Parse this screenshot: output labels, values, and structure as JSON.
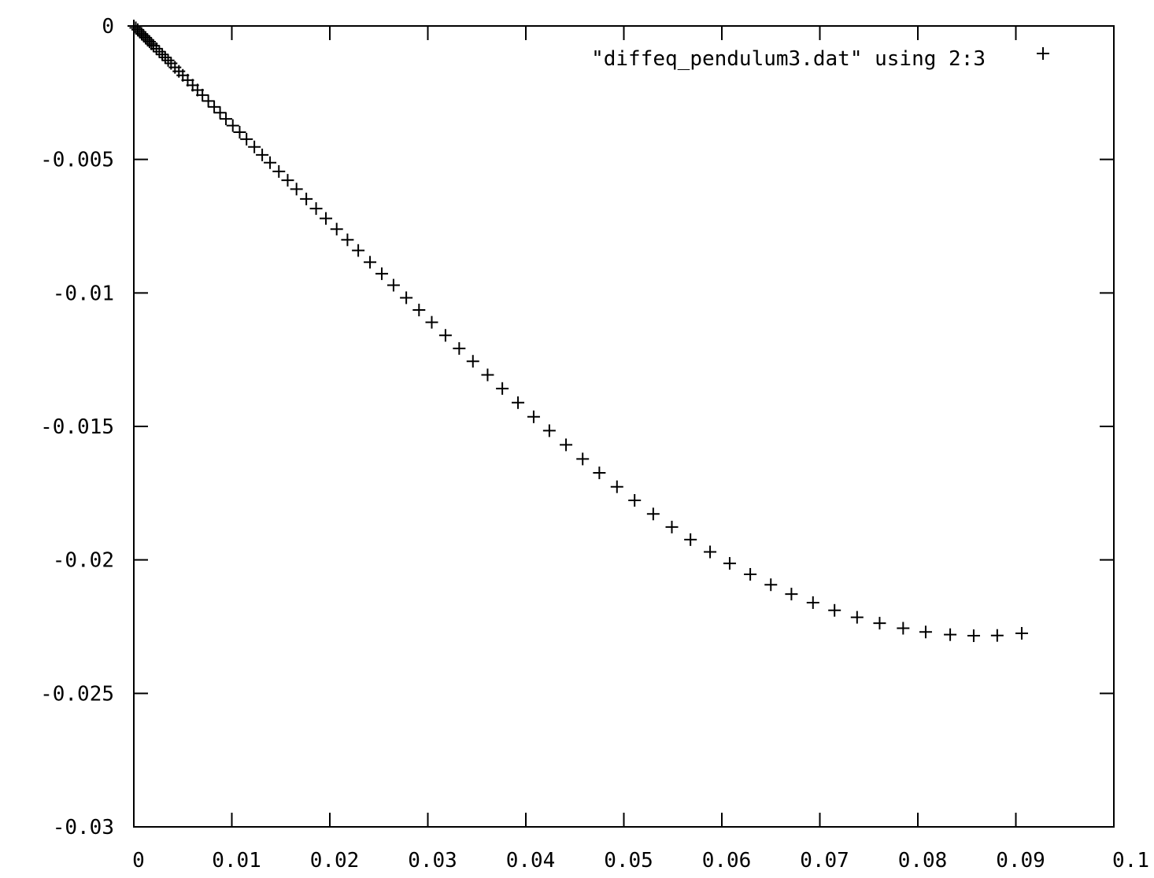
{
  "chart_data": {
    "type": "scatter",
    "title": "",
    "xlabel": "",
    "ylabel": "",
    "xlim": [
      0,
      0.1
    ],
    "ylim": [
      -0.03,
      0
    ],
    "xticks": [
      "0",
      "0.01",
      "0.02",
      "0.03",
      "0.04",
      "0.05",
      "0.06",
      "0.07",
      "0.08",
      "0.09",
      "0.1"
    ],
    "yticks": [
      "0",
      "-0.005",
      "-0.01",
      "-0.015",
      "-0.02",
      "-0.025",
      "-0.03"
    ],
    "grid": false,
    "legend_position": "top-right",
    "marker": "plus",
    "colors": {
      "points": "#000000",
      "axes": "#000000",
      "background": "#ffffff"
    },
    "series": [
      {
        "name": "\"diffeq_pendulum3.dat\" using 2:3",
        "points": [
          [
            0.0,
            0.0
          ],
          [
            0.0002,
            -7e-05
          ],
          [
            0.0004,
            -0.00014
          ],
          [
            0.0006,
            -0.00022
          ],
          [
            0.0008,
            -0.0003
          ],
          [
            0.001,
            -0.00037
          ],
          [
            0.0012,
            -0.00044
          ],
          [
            0.0014,
            -0.00052
          ],
          [
            0.0016,
            -0.00059
          ],
          [
            0.0018,
            -0.00067
          ],
          [
            0.002,
            -0.00074
          ],
          [
            0.0023,
            -0.00085
          ],
          [
            0.0026,
            -0.00096
          ],
          [
            0.0029,
            -0.00107
          ],
          [
            0.0032,
            -0.00118
          ],
          [
            0.0035,
            -0.00129
          ],
          [
            0.0038,
            -0.0014
          ],
          [
            0.0042,
            -0.00155
          ],
          [
            0.0046,
            -0.0017
          ],
          [
            0.005,
            -0.00185
          ],
          [
            0.0055,
            -0.00203
          ],
          [
            0.006,
            -0.00222
          ],
          [
            0.0065,
            -0.0024
          ],
          [
            0.007,
            -0.00259
          ],
          [
            0.0076,
            -0.00281
          ],
          [
            0.0082,
            -0.00303
          ],
          [
            0.0088,
            -0.00325
          ],
          [
            0.0094,
            -0.00348
          ],
          [
            0.0101,
            -0.00373
          ],
          [
            0.0108,
            -0.00398
          ],
          [
            0.0115,
            -0.00424
          ],
          [
            0.0123,
            -0.00453
          ],
          [
            0.0131,
            -0.00483
          ],
          [
            0.0139,
            -0.00512
          ],
          [
            0.0148,
            -0.00545
          ],
          [
            0.0157,
            -0.00578
          ],
          [
            0.0166,
            -0.00611
          ],
          [
            0.0176,
            -0.00648
          ],
          [
            0.0186,
            -0.00684
          ],
          [
            0.0196,
            -0.00721
          ],
          [
            0.0207,
            -0.00761
          ],
          [
            0.0218,
            -0.00801
          ],
          [
            0.0229,
            -0.00841
          ],
          [
            0.0241,
            -0.00885
          ],
          [
            0.0253,
            -0.00928
          ],
          [
            0.0265,
            -0.00971
          ],
          [
            0.0278,
            -0.01018
          ],
          [
            0.0291,
            -0.01064
          ],
          [
            0.0304,
            -0.0111
          ],
          [
            0.0318,
            -0.01159
          ],
          [
            0.0332,
            -0.01208
          ],
          [
            0.0346,
            -0.01256
          ],
          [
            0.0361,
            -0.01307
          ],
          [
            0.0376,
            -0.01358
          ],
          [
            0.0392,
            -0.01411
          ],
          [
            0.0408,
            -0.01464
          ],
          [
            0.0424,
            -0.01516
          ],
          [
            0.0441,
            -0.01569
          ],
          [
            0.0458,
            -0.01622
          ],
          [
            0.0475,
            -0.01674
          ],
          [
            0.0493,
            -0.01726
          ],
          [
            0.0511,
            -0.01777
          ],
          [
            0.053,
            -0.01828
          ],
          [
            0.0549,
            -0.01877
          ],
          [
            0.0568,
            -0.01924
          ],
          [
            0.0588,
            -0.0197
          ],
          [
            0.0608,
            -0.02013
          ],
          [
            0.0629,
            -0.02054
          ],
          [
            0.065,
            -0.02093
          ],
          [
            0.0671,
            -0.02128
          ],
          [
            0.0693,
            -0.0216
          ],
          [
            0.0715,
            -0.02189
          ],
          [
            0.0738,
            -0.02215
          ],
          [
            0.0761,
            -0.02237
          ],
          [
            0.0785,
            -0.02256
          ],
          [
            0.0808,
            -0.0227
          ],
          [
            0.0833,
            -0.0228
          ],
          [
            0.0857,
            -0.02284
          ],
          [
            0.0881,
            -0.02283
          ],
          [
            0.0906,
            -0.02275
          ]
        ]
      }
    ]
  }
}
